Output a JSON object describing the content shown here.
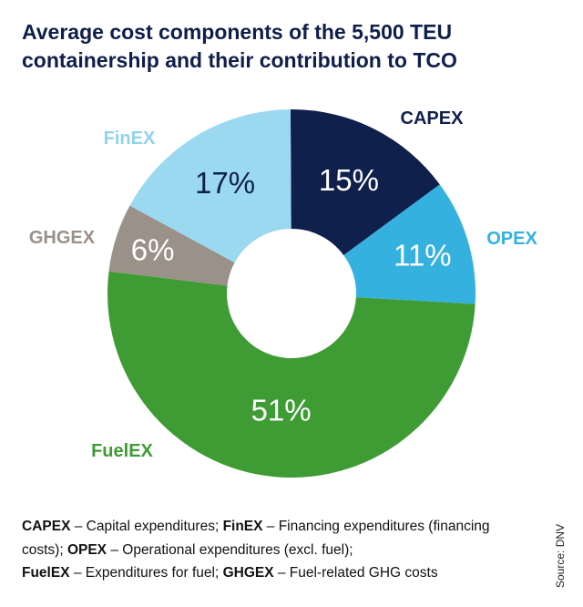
{
  "title": "Average cost components of the 5,500 TEU containership and their contribution to TCO",
  "chart_data": {
    "type": "pie",
    "donut": true,
    "title": "Average cost components of the 5,500 TEU containership and their contribution to TCO",
    "slices": [
      {
        "label": "CAPEX",
        "value": 15,
        "display": "15%",
        "color": "#10204c",
        "text_color": "#ffffff"
      },
      {
        "label": "OPEX",
        "value": 11,
        "display": "11%",
        "color": "#35b1e0",
        "text_color": "#ffffff"
      },
      {
        "label": "FuelEX",
        "value": 51,
        "display": "51%",
        "color": "#3f9c35",
        "text_color": "#ffffff"
      },
      {
        "label": "GHGEX",
        "value": 6,
        "display": "6%",
        "color": "#9a9188",
        "text_color": "#ffffff"
      },
      {
        "label": "FinEX",
        "value": 17,
        "display": "17%",
        "color": "#9bd9f0",
        "text_color": "#10204c"
      }
    ]
  },
  "notes": [
    {
      "term": "CAPEX",
      "desc": " – Capital expenditures; "
    },
    {
      "term": "FinEX",
      "desc": " – Financing expenditures (financing costs); "
    },
    {
      "term": "OPEX",
      "desc": " – Operational expenditures (excl. fuel); "
    },
    {
      "term": "FuelEX",
      "desc": " – Expenditures for fuel; "
    },
    {
      "term": "GHGEX",
      "desc": " – Fuel-related GHG costs"
    }
  ],
  "source": "Source: DNV"
}
